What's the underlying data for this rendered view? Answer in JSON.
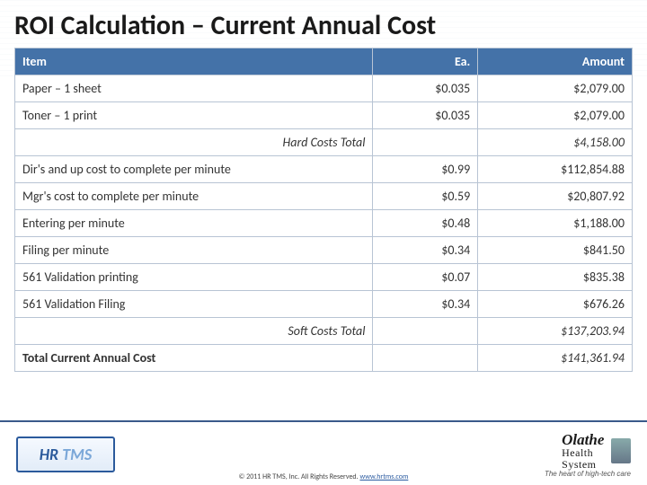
{
  "title": "ROI Calculation – Current Annual Cost",
  "table": {
    "header_bg": "#4472a8",
    "header_fg": "#ffffff",
    "border_color": "#b8c4d4",
    "columns": {
      "item": "Item",
      "ea": "Ea.",
      "amount": "Amount"
    },
    "rows": [
      {
        "item": "Paper – 1 sheet",
        "ea": "$0.035",
        "amount": "$2,079.00"
      },
      {
        "item": "Toner – 1 print",
        "ea": "$0.035",
        "amount": "$2,079.00"
      }
    ],
    "hard_total": {
      "label": "Hard Costs Total",
      "ea": "",
      "amount": "$4,158.00"
    },
    "soft_rows": [
      {
        "item": "Dir's and up cost to complete per minute",
        "ea": "$0.99",
        "amount": "$112,854.88"
      },
      {
        "item": "Mgr's cost to complete per minute",
        "ea": "$0.59",
        "amount": "$20,807.92"
      },
      {
        "item": "Entering per minute",
        "ea": "$0.48",
        "amount": "$1,188.00"
      },
      {
        "item": "Filing per minute",
        "ea": "$0.34",
        "amount": "$841.50"
      },
      {
        "item": "561 Validation printing",
        "ea": "$0.07",
        "amount": "$835.38"
      },
      {
        "item": "561 Validation Filing",
        "ea": "$0.34",
        "amount": "$676.26"
      }
    ],
    "soft_total": {
      "label": "Soft Costs Total",
      "ea": "",
      "amount": "$137,203.94"
    },
    "grand_total": {
      "label": "Total Current Annual Cost",
      "ea": "",
      "amount": "$141,361.94"
    }
  },
  "footer": {
    "logo_left": {
      "hr": "HR",
      "tms": " TMS"
    },
    "logo_right": {
      "line1": "Olathe",
      "line2": "Health",
      "line3": "System",
      "tagline": "The heart of high-tech care"
    },
    "copyright_prefix": "© 2011 HR TMS, Inc.   All Rights Reserved.  ",
    "copyright_link": "www.hrtms.com"
  }
}
